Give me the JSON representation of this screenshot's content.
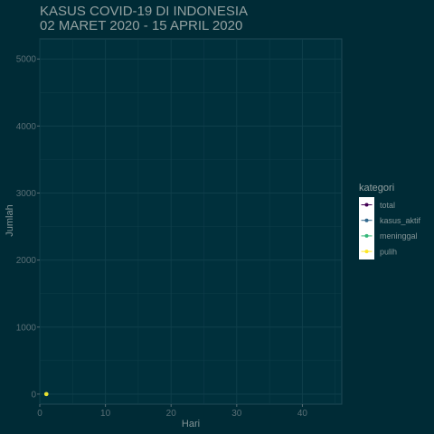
{
  "chart_data": {
    "type": "line",
    "title_lines": [
      "KASUS COVID-19 DI INDONESIA",
      "02 MARET 2020 - 15 APRIL 2020"
    ],
    "xlabel": "Hari",
    "ylabel": "Jumlah",
    "xlim": [
      0,
      46
    ],
    "ylim": [
      -150,
      5300
    ],
    "x_ticks": [
      0,
      10,
      20,
      30,
      40
    ],
    "y_ticks": [
      0,
      1000,
      2000,
      3000,
      4000,
      5000
    ],
    "grid": true,
    "legend": {
      "title": "kategori",
      "placement": "right"
    },
    "series": [
      {
        "name": "total",
        "color": "#440154",
        "points": [
          [
            1,
            2
          ]
        ]
      },
      {
        "name": "kasus_aktif",
        "color": "#31688e",
        "points": [
          [
            1,
            2
          ]
        ]
      },
      {
        "name": "meninggal",
        "color": "#35b779",
        "points": [
          [
            1,
            0
          ]
        ]
      },
      {
        "name": "pulih",
        "color": "#fde725",
        "points": [
          [
            1,
            0
          ]
        ]
      }
    ]
  }
}
